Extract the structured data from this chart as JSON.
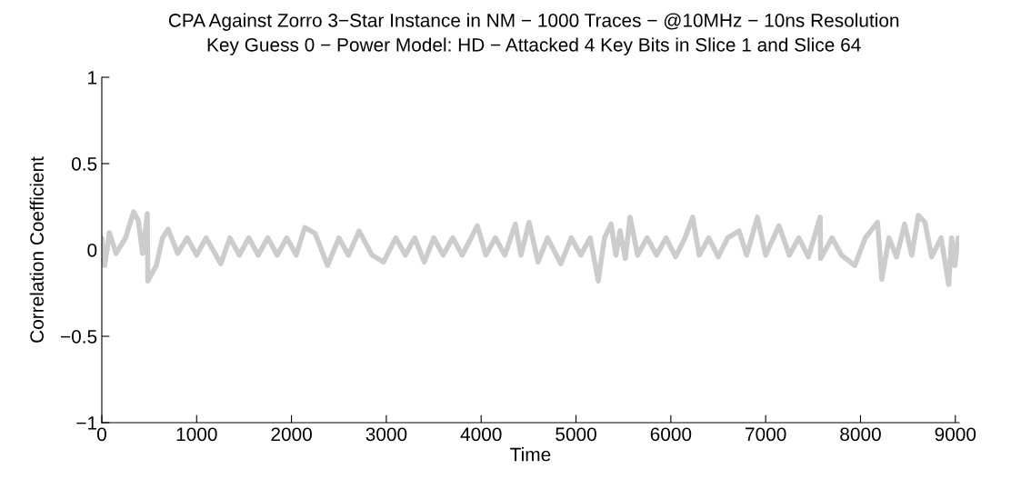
{
  "chart_data": {
    "type": "line",
    "title": "CPA Against Zorro 3−Star Instance in NM − 1000 Traces − @10MHz − 10ns Resolution",
    "subtitle": "Key Guess 0 − Power Model: HD − Attacked 4 Key Bits in Slice 1 and Slice 64",
    "xlabel": "Time",
    "ylabel": "Correlation Coefficient",
    "x": [
      0,
      30,
      80,
      150,
      250,
      335,
      385,
      430,
      480,
      485,
      575,
      640,
      700,
      800,
      900,
      1000,
      1100,
      1255,
      1350,
      1450,
      1550,
      1650,
      1750,
      1850,
      1950,
      2050,
      2140,
      2250,
      2380,
      2500,
      2600,
      2713,
      2850,
      2970,
      3100,
      3200,
      3300,
      3400,
      3500,
      3600,
      3700,
      3800,
      3960,
      4050,
      4150,
      4250,
      4360,
      4420,
      4505,
      4600,
      4700,
      4840,
      4950,
      5050,
      5150,
      5235,
      5300,
      5370,
      5420,
      5465,
      5520,
      5570,
      5650,
      5750,
      5850,
      5950,
      6050,
      6150,
      6230,
      6300,
      6400,
      6500,
      6600,
      6720,
      6800,
      6913,
      7000,
      7140,
      7250,
      7350,
      7450,
      7575,
      7580,
      7700,
      7800,
      7940,
      8050,
      8180,
      8225,
      8300,
      8380,
      8465,
      8540,
      8610,
      8680,
      8750,
      8850,
      8930,
      8960,
      8995,
      9030
    ],
    "series": [
      {
        "color": "#cccccc",
        "values": [
          0.07,
          -0.09,
          0.1,
          -0.02,
          0.07,
          0.22,
          0.17,
          -0.02,
          0.21,
          -0.18,
          -0.09,
          0.07,
          0.12,
          -0.02,
          0.07,
          -0.03,
          0.07,
          -0.08,
          0.07,
          -0.03,
          0.07,
          -0.03,
          0.07,
          -0.03,
          0.07,
          -0.03,
          0.13,
          0.095,
          -0.09,
          0.07,
          -0.03,
          0.11,
          -0.03,
          -0.07,
          0.07,
          -0.03,
          0.07,
          -0.07,
          0.07,
          -0.03,
          0.07,
          -0.03,
          0.14,
          -0.03,
          0.07,
          -0.03,
          0.15,
          -0.03,
          0.16,
          -0.07,
          0.07,
          -0.08,
          0.07,
          -0.03,
          0.07,
          -0.18,
          0.07,
          0.15,
          -0.03,
          0.11,
          -0.05,
          0.19,
          -0.03,
          0.07,
          -0.03,
          0.07,
          -0.04,
          0.07,
          0.19,
          -0.03,
          0.07,
          -0.04,
          0.07,
          0.11,
          -0.03,
          0.19,
          -0.03,
          0.14,
          -0.03,
          0.07,
          -0.04,
          0.19,
          -0.05,
          0.07,
          -0.03,
          -0.09,
          0.07,
          0.16,
          -0.17,
          0.07,
          -0.04,
          0.15,
          -0.03,
          0.2,
          0.16,
          -0.04,
          0.07,
          -0.2,
          0.07,
          -0.09,
          0.07
        ]
      }
    ],
    "xlim": [
      0,
      9040
    ],
    "xticks": [
      0,
      1000,
      2000,
      3000,
      4000,
      5000,
      6000,
      7000,
      8000,
      9000
    ],
    "ylim": [
      -1,
      1
    ],
    "yticks": [
      {
        "value": -1,
        "label": "−1"
      },
      {
        "value": -0.5,
        "label": "−0.5"
      },
      0,
      0.5,
      1
    ],
    "grid": false,
    "legend": false,
    "marker": "none",
    "line_style": "solid"
  }
}
